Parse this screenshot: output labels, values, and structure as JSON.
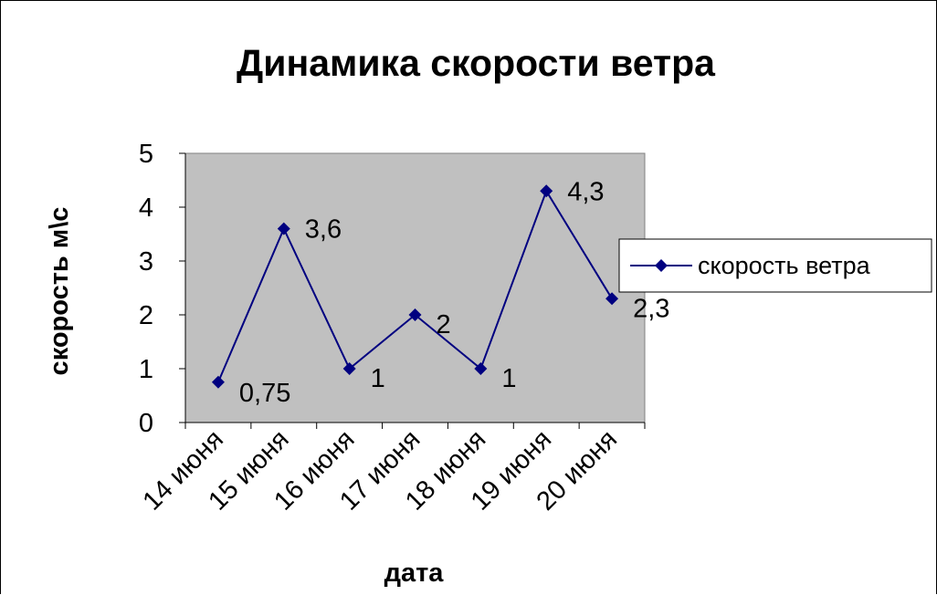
{
  "chart_data": {
    "type": "line",
    "title": "Динамика скорости ветра",
    "xlabel": "дата",
    "ylabel": "скорость м\\с",
    "categories": [
      "14 июня",
      "15 июня",
      "16 июня",
      "17 июня",
      "18 июня",
      "19 июня",
      "20 июня"
    ],
    "series": [
      {
        "name": "скорость ветра",
        "values": [
          0.75,
          3.6,
          1,
          2,
          1,
          4.3,
          2.3
        ],
        "labels": [
          "0,75",
          "3,6",
          "1",
          "2",
          "1",
          "4,3",
          "2,3"
        ]
      }
    ],
    "ylim": [
      0,
      5
    ],
    "yticks": [
      "0",
      "1",
      "2",
      "3",
      "4",
      "5"
    ],
    "grid": false,
    "legend": "right",
    "colors": {
      "series": "#000080",
      "plot_background": "#c0c0c0"
    }
  }
}
